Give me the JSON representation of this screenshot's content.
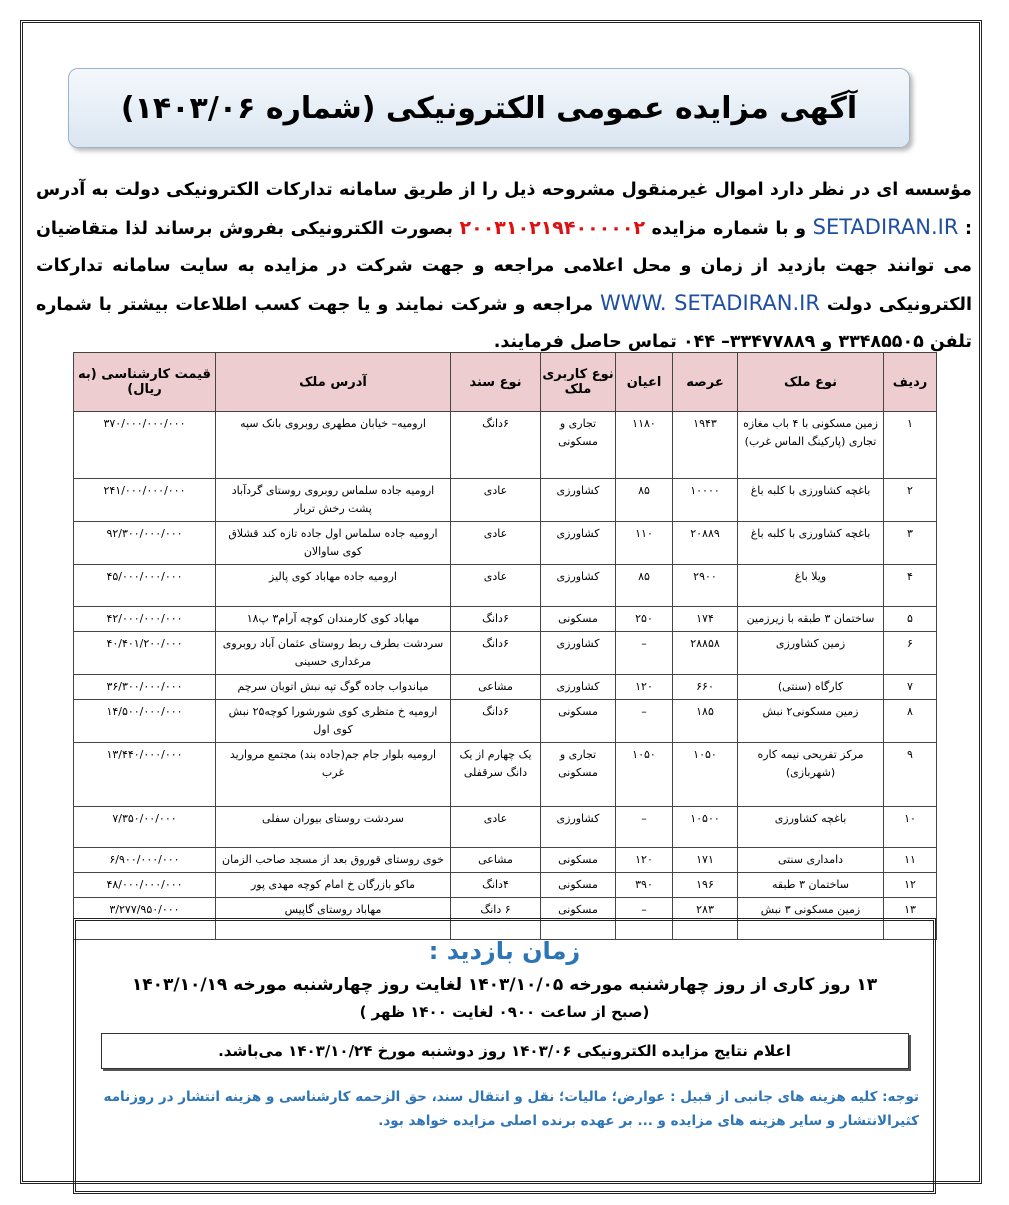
{
  "header": {
    "title": "آگهی مزایده عمومی الکترونیکی (شماره ۱۴۰۳/۰۶)"
  },
  "intro": [
    "مؤسسه ای در نظر دارد اموال غیرمنقول مشروحه ذیل را از طریق سامانه تدارکات الکترونیکی دولت به آدرس : ",
    "SETADIRAN.IR",
    " و با شماره مزایده ",
    "۲۰۰۳۱۰۲۱۹۴۰۰۰۰۰۲",
    " بصورت الکترونیکی بفروش برساند لذا متقاضیان می توانند جهت بازدید از زمان و محل اعلامی مراجعه و جهت شرکت در مزایده به سایت سامانه تدارکات الکترونیکی دولت ",
    "WWW. SETADIRAN.IR",
    " مراجعه و شرکت نمایند و یا جهت کسب اطلاعات بیشتر با شماره تلفن ۳۳۴۸۵۵۰۵ و ۳۳۴۷۷۸۸۹– ۰۴۴ تماس حاصل فرمایند."
  ],
  "table": {
    "headers": [
      "ردیف",
      "نوع ملک",
      "عرصه",
      "اعیان",
      "نوع کاربری ملک",
      "نوع سند",
      "آدرس ملک",
      "قیمت کارشناسی (به ریال)"
    ],
    "rows": [
      [
        "۱",
        "زمین مسکونی با ۴ باب مغازه تجاری (پارکینگ الماس غرب)",
        "۱۹۴۳",
        "۱۱۸۰",
        "تجاری و مسکونی",
        "۶دانگ",
        "ارومیه– خیابان مطهری روبروی بانک سپه",
        "۳۷۰/۰۰۰/۰۰۰/۰۰۰"
      ],
      [
        "۲",
        "باغچه کشاورزی با کلبه باغ",
        "۱۰۰۰۰",
        "۸۵",
        "کشاورزی",
        "عادی",
        "ارومیه جاده سلماس روبروی روستای گردآباد پشت رخش تربار",
        "۲۴۱/۰۰۰/۰۰۰/۰۰۰"
      ],
      [
        "۳",
        "باغچه کشاورزی با کلبه باغ",
        "۲۰۸۸۹",
        "۱۱۰",
        "کشاورزی",
        "عادی",
        "ارومیه جاده سلماس اول جاده تازه کند قشلاق کوی ساوالان",
        "۹۲/۳۰۰/۰۰۰/۰۰۰"
      ],
      [
        "۴",
        "ویلا باغ",
        "۲۹۰۰",
        "۸۵",
        "کشاورزی",
        "عادی",
        "ارومیه جاده مهاباد کوی پالیز",
        "۴۵/۰۰۰/۰۰۰/۰۰۰"
      ],
      [
        "۵",
        "ساختمان ۳ طبقه با زیرزمین",
        "۱۷۴",
        "۲۵۰",
        "مسکونی",
        "۶دانگ",
        "مهاباد کوی کارمندان کوچه آرام۳ پ۱۸",
        "۴۲/۰۰۰/۰۰۰/۰۰۰"
      ],
      [
        "۶",
        "زمین کشاورزی",
        "۲۸۸۵۸",
        "–",
        "کشاورزی",
        "۶دانگ",
        "سردشت بطرف ربط روستای عثمان آباد روبروی مرغداری حسینی",
        "۴۰/۴۰۱/۲۰۰/۰۰۰"
      ],
      [
        "۷",
        "کارگاه (سنتی)",
        "۶۶۰",
        "۱۲۰",
        "کشاورزی",
        "مشاعی",
        "میاندواب جاده گوگ تپه نبش اتوبان سرچم",
        "۳۶/۳۰۰/۰۰۰/۰۰۰"
      ],
      [
        "۸",
        "زمین مسکونی۲ نبش",
        "۱۸۵",
        "–",
        "مسکونی",
        "۶دانگ",
        "ارومیه خ متظری کوی شورشورا کوچه۲۵ نبش کوی اول",
        "۱۴/۵۰۰/۰۰۰/۰۰۰"
      ],
      [
        "۹",
        "مرکز تفریحی نیمه کاره (شهربازی)",
        "۱۰۵۰",
        "۱۰۵۰",
        "تجاری و مسکونی",
        "یک چهارم از یک دانگ سرقفلی",
        "ارومیه بلوار جام جم(جاده بند) مجتمع مروارید غرب",
        "۱۳/۴۴۰/۰۰۰/۰۰۰"
      ],
      [
        "۱۰",
        "باغچه کشاورزی",
        "۱۰۵۰۰",
        "–",
        "کشاورزی",
        "عادی",
        "سردشت روستای بیوران سفلی",
        "۷/۳۵۰/۰۰/۰۰۰"
      ],
      [
        "۱۱",
        "دامداری سنتی",
        "۱۷۱",
        "۱۲۰",
        "مسکونی",
        "مشاعی",
        "خوی روستای قوروق بعد از مسجد صاحب الزمان",
        "۶/۹۰۰/۰۰۰/۰۰۰"
      ],
      [
        "۱۲",
        "ساختمان ۳ طبقه",
        "۱۹۶",
        "۳۹۰",
        "مسکونی",
        "۴دانگ",
        "ماکو بازرگان خ امام کوچه مهدی پور",
        "۴۸/۰۰۰/۰۰۰/۰۰۰"
      ],
      [
        "۱۳",
        "زمین مسکونی ۳ نبش",
        "۲۸۳",
        "–",
        "مسکونی",
        "۶ دانگ",
        "مهاباد روستای گاپیس",
        "۳/۲۷۷/۹۵۰/۰۰۰"
      ]
    ]
  },
  "visit": {
    "title": "زمان بازدید :",
    "line1": "۱۳ روز کاری از روز چهارشنبه مورخه ۱۴۰۳/۱۰/۰۵ لغایت روز چهارشنبه مورخه ۱۴۰۳/۱۰/۱۹",
    "line2": "(صبح از ساعت ۰۹۰۰ لغایت ۱۴۰۰ ظهر )"
  },
  "results": "اعلام نتایج مزایده الکترونیکی ۱۴۰۳/۰۶ روز دوشنبه مورخ ۱۴۰۳/۱۰/۲۴ می‌باشد.",
  "note": "توجه: کلیه هزینه های جانبی از قبیل : عوارض؛ مالیات؛ نقل و انتقال سند، حق الزحمه کارشناسی و هزینه انتشار در روزنامه کثیرالانتشار و سایر هزینه های مزایده و ... بر عهده برنده اصلی مزایده خواهد بود."
}
